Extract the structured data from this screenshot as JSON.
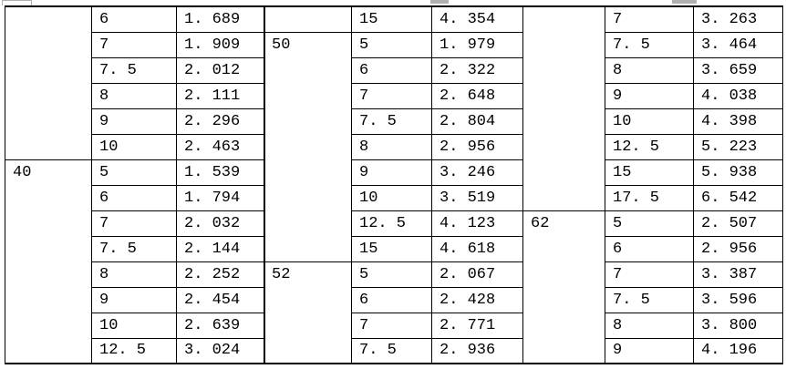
{
  "colors": {
    "border": "#000000",
    "text": "#000000",
    "background": "#ffffff",
    "cropped_remnant_gray": "#b0b0b0"
  },
  "table": {
    "description_note": "",
    "sections": [
      {
        "name": "left",
        "groups": [
          {
            "label": "",
            "rows": [
              [
                "6",
                "1.689"
              ],
              [
                "7",
                "1.909"
              ],
              [
                "7.5",
                "2.012"
              ],
              [
                "8",
                "2.111"
              ],
              [
                "9",
                "2.296"
              ],
              [
                "10",
                "2.463"
              ]
            ]
          },
          {
            "label": "40",
            "rows": [
              [
                "5",
                "1.539"
              ],
              [
                "6",
                "1.794"
              ],
              [
                "7",
                "2.032"
              ],
              [
                "7.5",
                "2.144"
              ],
              [
                "8",
                "2.252"
              ],
              [
                "9",
                "2.454"
              ],
              [
                "10",
                "2.639"
              ],
              [
                "12.5",
                "3.024"
              ]
            ]
          }
        ]
      },
      {
        "name": "middle",
        "groups": [
          {
            "label": "",
            "rows": [
              [
                "15",
                "4.354"
              ]
            ]
          },
          {
            "label": "50",
            "rows": [
              [
                "5",
                "1.979"
              ],
              [
                "6",
                "2.322"
              ],
              [
                "7",
                "2.648"
              ],
              [
                "7.5",
                "2.804"
              ],
              [
                "8",
                "2.956"
              ],
              [
                "9",
                "3.246"
              ],
              [
                "10",
                "3.519"
              ],
              [
                "12.5",
                "4.123"
              ],
              [
                "15",
                "4.618"
              ]
            ]
          },
          {
            "label": "52",
            "rows": [
              [
                "5",
                "2.067"
              ],
              [
                "6",
                "2.428"
              ],
              [
                "7",
                "2.771"
              ],
              [
                "7.5",
                "2.936"
              ]
            ]
          }
        ]
      },
      {
        "name": "right",
        "groups": [
          {
            "label": "",
            "rows": [
              [
                "7",
                "3.263"
              ],
              [
                "7.5",
                "3.464"
              ],
              [
                "8",
                "3.659"
              ],
              [
                "9",
                "4.038"
              ],
              [
                "10",
                "4.398"
              ],
              [
                "12.5",
                "5.223"
              ],
              [
                "15",
                "5.938"
              ],
              [
                "17.5",
                "6.542"
              ]
            ]
          },
          {
            "label": "62",
            "rows": [
              [
                "5",
                "2.507"
              ],
              [
                "6",
                "2.956"
              ],
              [
                "7",
                "3.387"
              ],
              [
                "7.5",
                "3.596"
              ],
              [
                "8",
                "3.800"
              ],
              [
                "9",
                "4.196"
              ]
            ]
          }
        ]
      }
    ]
  }
}
